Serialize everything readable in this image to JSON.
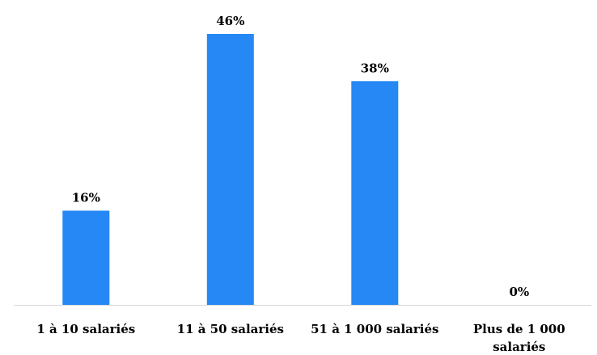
{
  "colors": {
    "bar": "#2588F5",
    "axis": "#D9D9D9",
    "text": "#000000"
  },
  "chart_data": {
    "type": "bar",
    "categories": [
      [
        "1 à 10 salariés"
      ],
      [
        "11 à 50 salariés"
      ],
      [
        "51 à 1 000 salariés"
      ],
      [
        "Plus de 1 000",
        "salariés"
      ]
    ],
    "values": [
      16,
      46,
      38,
      0
    ],
    "data_labels": [
      "16%",
      "46%",
      "38%",
      "0%"
    ],
    "unit": "%",
    "title": "",
    "xlabel": "",
    "ylabel": "",
    "ylim": [
      0,
      46
    ],
    "grid": false,
    "legend": "none"
  }
}
